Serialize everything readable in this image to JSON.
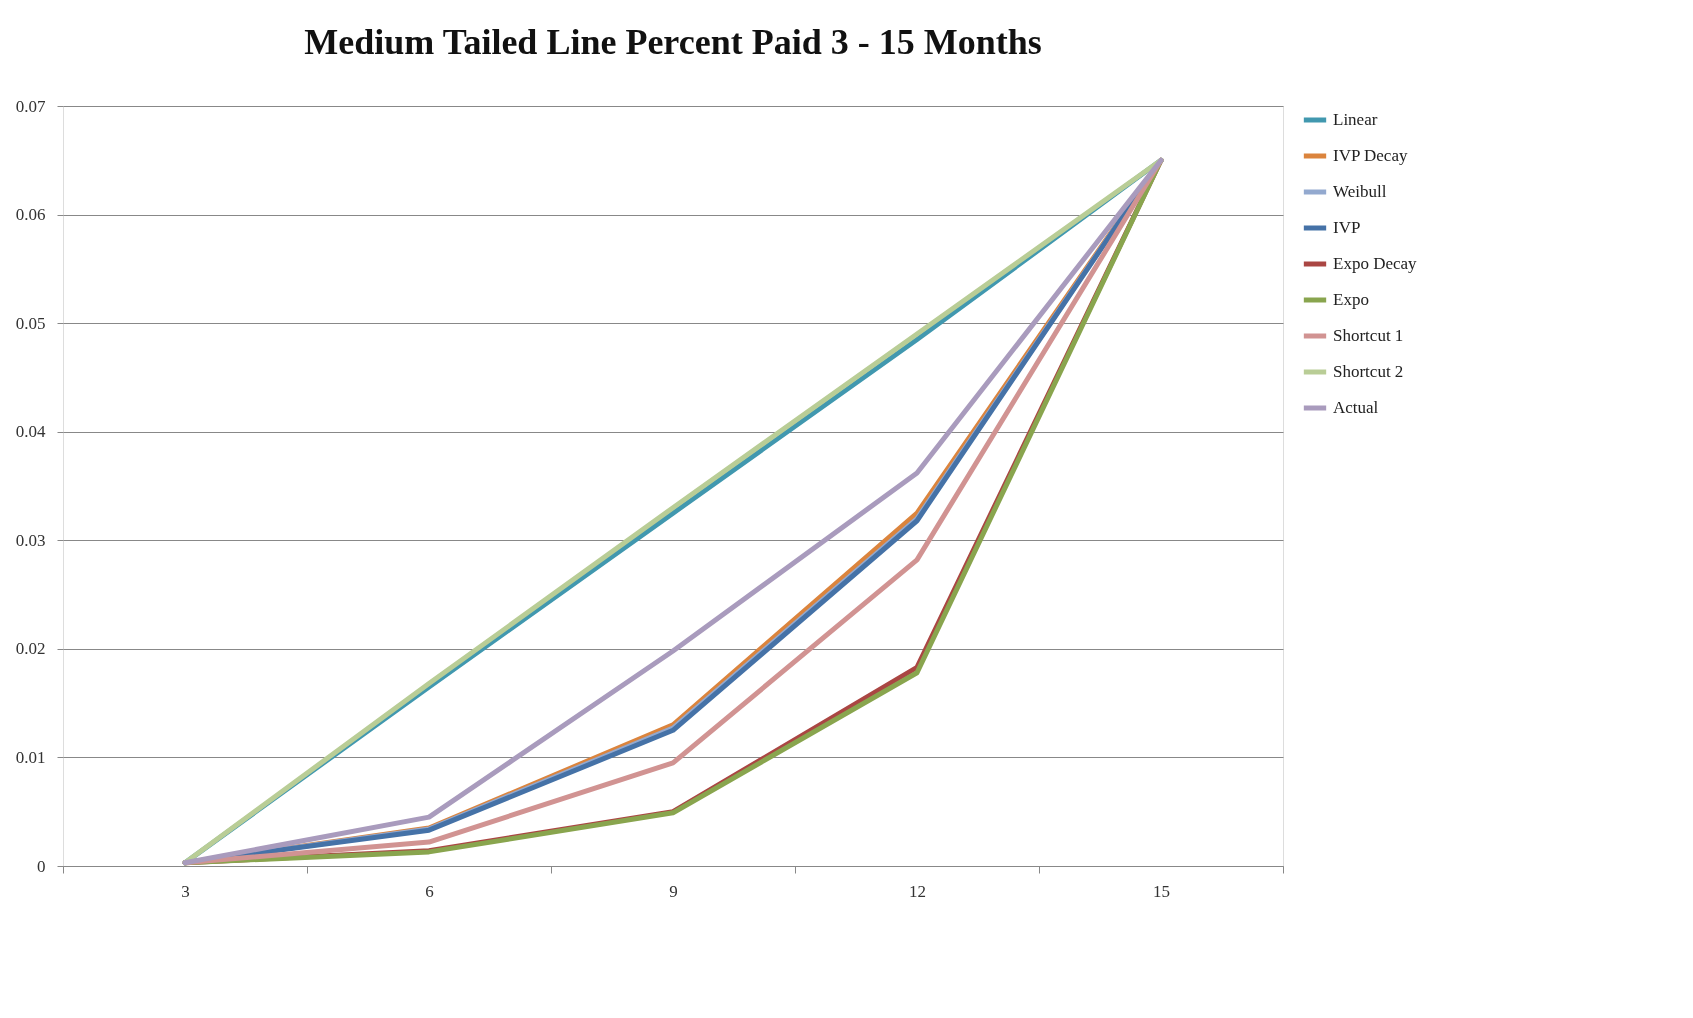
{
  "chart_data": {
    "type": "line",
    "title": "Medium Tailed Line Percent Paid 3 - 15 Months",
    "categories": [
      "3",
      "6",
      "9",
      "12",
      "15"
    ],
    "ylim": [
      0,
      0.07
    ],
    "yticks": [
      {
        "value": 0,
        "label": "0"
      },
      0.01,
      0.02,
      0.03,
      0.04,
      0.05,
      0.06,
      0.07
    ],
    "grid": "y",
    "legend": "right",
    "marker": "none",
    "line_style": "solid",
    "series": [
      {
        "name": "Linear",
        "color": "#4198af",
        "values": [
          0.0003,
          0.0165,
          0.0325,
          0.0485,
          0.065
        ]
      },
      {
        "name": "IVP Decay",
        "color": "#db843d",
        "values": [
          0.0003,
          0.0035,
          0.013,
          0.0325,
          0.065
        ]
      },
      {
        "name": "Weibull",
        "color": "#93a9cf",
        "values": [
          0.0003,
          0.0034,
          0.0127,
          0.032,
          0.065
        ]
      },
      {
        "name": "IVP",
        "color": "#4572a7",
        "values": [
          0.0003,
          0.0033,
          0.0125,
          0.0318,
          0.065
        ]
      },
      {
        "name": "Expo Decay",
        "color": "#aa4643",
        "values": [
          0.0003,
          0.0014,
          0.005,
          0.0183,
          0.065
        ]
      },
      {
        "name": "Expo",
        "color": "#89a54e",
        "values": [
          0.0003,
          0.0013,
          0.0049,
          0.0178,
          0.065
        ]
      },
      {
        "name": "Shortcut 1",
        "color": "#d19392",
        "values": [
          0.0003,
          0.0022,
          0.0095,
          0.0282,
          0.065
        ]
      },
      {
        "name": "Shortcut 2",
        "color": "#b9cd96",
        "values": [
          0.0003,
          0.0168,
          0.033,
          0.049,
          0.065
        ]
      },
      {
        "name": "Actual",
        "color": "#a99bbd",
        "values": [
          0.0003,
          0.0045,
          0.0198,
          0.0362,
          0.065
        ]
      }
    ]
  }
}
